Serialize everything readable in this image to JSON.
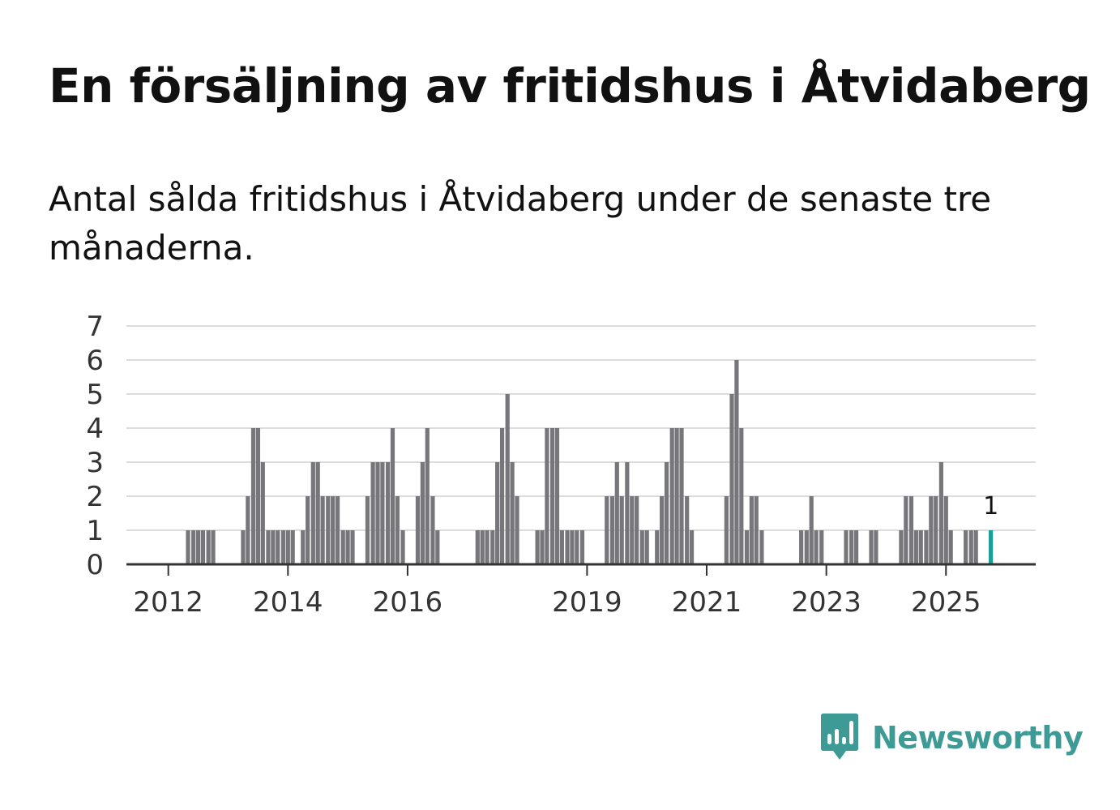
{
  "title": "En försäljning av fritidshus i Åtvidaberg",
  "subtitle": "Antal sålda fritidshus i Åtvidaberg under de senaste tre månaderna.",
  "brand": {
    "name": "Newsworthy",
    "color": "#3d9a95"
  },
  "colors": {
    "bar": "#77767b",
    "highlight": "#1a9e97",
    "grid": "#dcdcdc",
    "axis": "#333333"
  },
  "chart_data": {
    "type": "bar",
    "title": "En försäljning av fritidshus i Åtvidaberg",
    "subtitle": "Antal sålda fritidshus i Åtvidaberg under de senaste tre månaderna.",
    "xlabel": "",
    "ylabel": "",
    "ylim": [
      0,
      7
    ],
    "y_ticks": [
      0,
      1,
      2,
      3,
      4,
      5,
      6,
      7
    ],
    "x_ticks": [
      {
        "label": "2012",
        "x": 2012
      },
      {
        "label": "2014",
        "x": 2014
      },
      {
        "label": "2016",
        "x": 2016
      },
      {
        "label": "2019",
        "x": 2019
      },
      {
        "label": "2021",
        "x": 2021
      },
      {
        "label": "2023",
        "x": 2023
      },
      {
        "label": "2025",
        "x": 2025
      }
    ],
    "x_range": [
      2011.3,
      2026.5
    ],
    "series": [
      {
        "name": "Antal sålda fritidshus",
        "x": [
          2012.33,
          2012.42,
          2012.5,
          2012.58,
          2012.67,
          2012.75,
          2013.25,
          2013.33,
          2013.42,
          2013.5,
          2013.58,
          2013.67,
          2013.75,
          2013.83,
          2013.92,
          2014.0,
          2014.08,
          2014.25,
          2014.33,
          2014.42,
          2014.5,
          2014.58,
          2014.67,
          2014.75,
          2014.83,
          2014.92,
          2015.0,
          2015.08,
          2015.33,
          2015.42,
          2015.5,
          2015.58,
          2015.67,
          2015.75,
          2015.83,
          2015.92,
          2016.17,
          2016.25,
          2016.33,
          2016.42,
          2016.5,
          2017.17,
          2017.25,
          2017.33,
          2017.42,
          2017.5,
          2017.58,
          2017.67,
          2017.75,
          2017.83,
          2018.17,
          2018.25,
          2018.33,
          2018.42,
          2018.5,
          2018.58,
          2018.67,
          2018.75,
          2018.83,
          2018.92,
          2019.33,
          2019.42,
          2019.5,
          2019.58,
          2019.67,
          2019.75,
          2019.83,
          2019.92,
          2020.0,
          2020.17,
          2020.25,
          2020.33,
          2020.42,
          2020.5,
          2020.58,
          2020.67,
          2020.75,
          2021.33,
          2021.42,
          2021.5,
          2021.58,
          2021.67,
          2021.75,
          2021.83,
          2021.92,
          2022.58,
          2022.67,
          2022.75,
          2022.83,
          2022.92,
          2023.33,
          2023.42,
          2023.5,
          2023.75,
          2023.83,
          2024.25,
          2024.33,
          2024.42,
          2024.5,
          2024.58,
          2024.67,
          2024.75,
          2024.83,
          2024.92,
          2025.0,
          2025.08,
          2025.33,
          2025.42,
          2025.5,
          2025.75
        ],
        "values": [
          1,
          1,
          1,
          1,
          1,
          1,
          1,
          2,
          4,
          4,
          3,
          1,
          1,
          1,
          1,
          1,
          1,
          1,
          2,
          3,
          3,
          2,
          2,
          2,
          2,
          1,
          1,
          1,
          2,
          3,
          3,
          3,
          3,
          4,
          2,
          1,
          2,
          3,
          4,
          2,
          1,
          1,
          1,
          1,
          1,
          3,
          4,
          5,
          3,
          2,
          1,
          1,
          4,
          4,
          4,
          1,
          1,
          1,
          1,
          1,
          2,
          2,
          3,
          2,
          3,
          2,
          2,
          1,
          1,
          1,
          2,
          3,
          4,
          4,
          4,
          2,
          1,
          2,
          5,
          6,
          4,
          1,
          2,
          2,
          1,
          1,
          1,
          2,
          1,
          1,
          1,
          1,
          1,
          1,
          1,
          1,
          2,
          2,
          1,
          1,
          1,
          2,
          2,
          3,
          2,
          1,
          1,
          1,
          1,
          1
        ]
      }
    ],
    "highlight": {
      "x": 2025.75,
      "value": 1,
      "label": "1"
    }
  }
}
